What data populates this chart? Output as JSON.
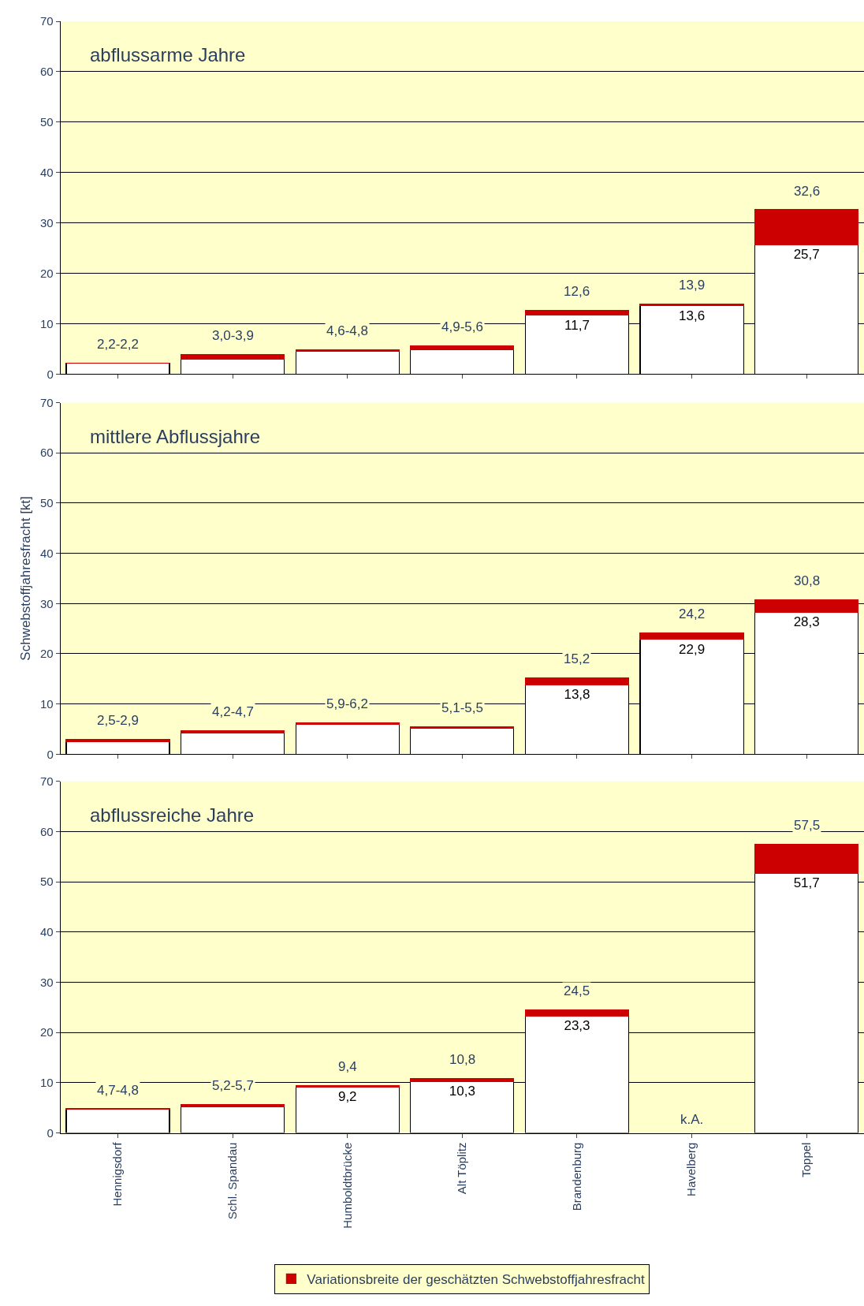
{
  "chart_data": [
    {
      "type": "bar",
      "title": "abflussarme Jahre",
      "stacked": true,
      "categories": [
        "Hennigsdorf",
        "Schl. Spandau",
        "Humboldtbrücke",
        "Alt Töplitz",
        "Brandenburg",
        "Havelberg",
        "Toppel"
      ],
      "series": [
        {
          "color": "#ffffff",
          "values": [
            2.2,
            3.0,
            4.6,
            4.9,
            11.7,
            13.6,
            25.7
          ],
          "value_labels": [
            null,
            null,
            null,
            null,
            "11,7",
            "13,6",
            "25,7"
          ]
        },
        {
          "name": "Variationsbreite der geschätzten Schwebstoffjahresfracht",
          "color": "#cc0000",
          "values": [
            0.0,
            0.9,
            0.2,
            0.7,
            0.9,
            0.3,
            6.9
          ]
        }
      ],
      "totals": [
        "2,2-2,2",
        "3,0-3,9",
        "4,6-4,8",
        "4,9-5,6",
        "12,6",
        "13,9",
        "32,6"
      ],
      "ylim": [
        0,
        70
      ],
      "yticks": [
        0,
        10,
        20,
        30,
        40,
        50,
        60,
        70
      ],
      "grid": "y",
      "tick_labels": "y",
      "legend": "bottom"
    },
    {
      "type": "bar",
      "title": "mittlere Abflussjahre",
      "ylabel": "Schwebstoffjahresfracht [kt]",
      "stacked": true,
      "categories": [
        "Hennigsdorf",
        "Schl. Spandau",
        "Humboldtbrücke",
        "Alt Töplitz",
        "Brandenburg",
        "Havelberg",
        "Toppel"
      ],
      "series": [
        {
          "color": "#ffffff",
          "values": [
            2.5,
            4.2,
            5.9,
            5.1,
            13.8,
            22.9,
            28.3
          ],
          "value_labels": [
            null,
            null,
            null,
            null,
            "13,8",
            "22,9",
            "28,3"
          ]
        },
        {
          "color": "#cc0000",
          "values": [
            0.4,
            0.5,
            0.3,
            0.4,
            1.4,
            1.3,
            2.5
          ]
        }
      ],
      "totals": [
        "2,5-2,9",
        "4,2-4,7",
        "5,9-6,2",
        "5,1-5,5",
        "15,2",
        "24,2",
        "30,8"
      ],
      "ylim": [
        0,
        70
      ],
      "yticks": [
        0,
        10,
        20,
        30,
        40,
        50,
        60,
        70
      ],
      "grid": "y",
      "tick_labels": "y"
    },
    {
      "type": "bar",
      "title": "abflussreiche Jahre",
      "stacked": true,
      "categories": [
        "Hennigsdorf",
        "Schl. Spandau",
        "Humboldtbrücke",
        "Alt Töplitz",
        "Brandenburg",
        "Havelberg",
        "Toppel"
      ],
      "series": [
        {
          "color": "#ffffff",
          "values": [
            4.7,
            5.2,
            9.2,
            10.3,
            23.3,
            null,
            51.7
          ],
          "value_labels": [
            null,
            null,
            "9,2",
            "10,3",
            "23,3",
            null,
            "51,7"
          ]
        },
        {
          "color": "#cc0000",
          "values": [
            0.1,
            0.5,
            0.2,
            0.5,
            1.2,
            null,
            5.8
          ]
        }
      ],
      "totals": [
        "4,7-4,8",
        "5,2-5,7",
        "9,4",
        "10,8",
        "24,5",
        null,
        "57,5"
      ],
      "annotations": [
        "k.A."
      ],
      "ylim": [
        0,
        70
      ],
      "yticks": [
        0,
        10,
        20,
        30,
        40,
        50,
        60,
        70
      ],
      "grid": "y"
    }
  ]
}
